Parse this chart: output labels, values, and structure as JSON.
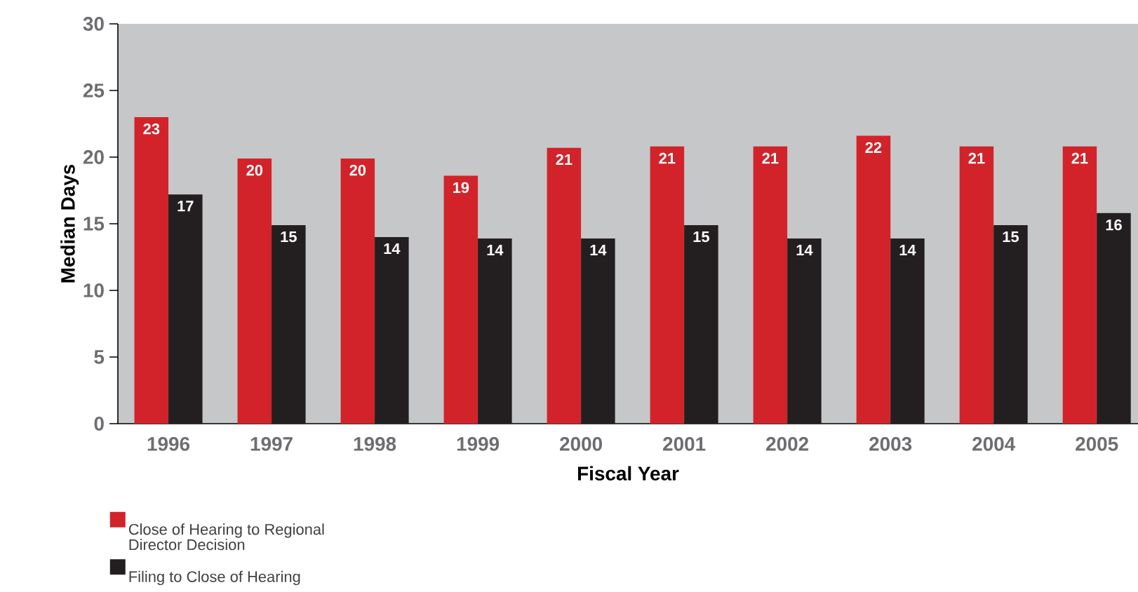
{
  "chart_data": {
    "type": "bar",
    "xlabel": "Fiscal Year",
    "ylabel": "Median Days",
    "categories": [
      "1996",
      "1997",
      "1998",
      "1999",
      "2000",
      "2001",
      "2002",
      "2003",
      "2004",
      "2005"
    ],
    "series": [
      {
        "name": "Close of Hearing to Regional Director Decision",
        "color": "#d2232a",
        "values": [
          23.0,
          19.9,
          19.9,
          18.6,
          20.7,
          20.8,
          20.8,
          21.6,
          20.8,
          20.8
        ],
        "value_labels": [
          "23",
          "20",
          "20",
          "19",
          "21",
          "21",
          "21",
          "22",
          "21",
          "21"
        ]
      },
      {
        "name": "Filing to Close of Hearing",
        "color": "#231f20",
        "values": [
          17.2,
          14.9,
          14.0,
          13.9,
          13.9,
          14.9,
          13.9,
          13.9,
          14.9,
          15.8
        ],
        "value_labels": [
          "17",
          "15",
          "14",
          "14",
          "14",
          "15",
          "14",
          "14",
          "15",
          "16"
        ]
      }
    ],
    "ylim": [
      0,
      30
    ],
    "yticks": [
      0,
      5,
      10,
      15,
      20,
      25,
      30
    ],
    "grid": false,
    "legend": "bottom left"
  }
}
